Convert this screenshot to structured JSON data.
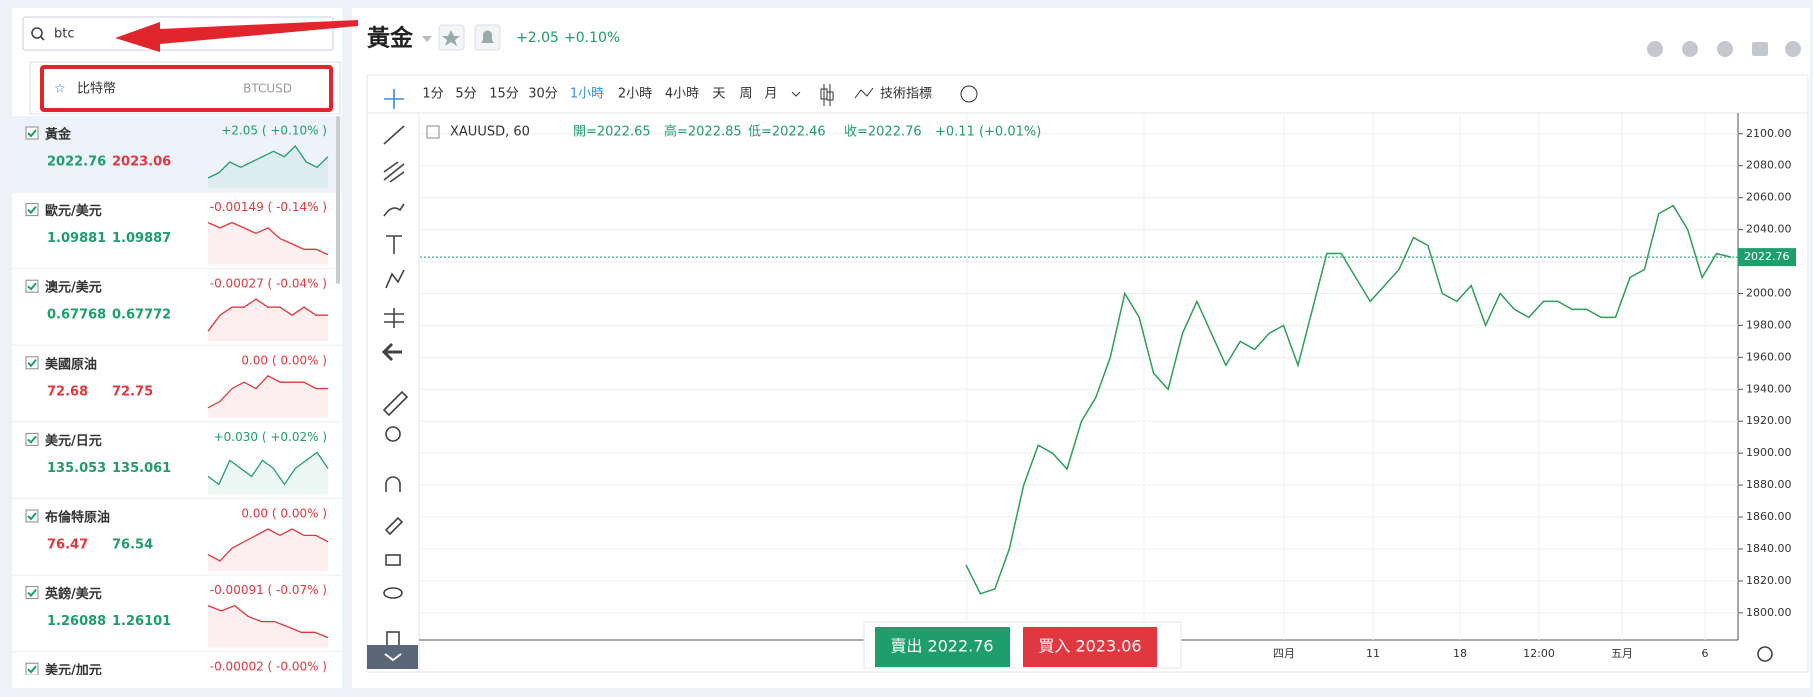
{
  "search": {
    "query": "btc",
    "result_name": "比特幣",
    "result_symbol": "BTCUSD"
  },
  "watchlist": [
    {
      "name": "黃金",
      "bid": "2022.76",
      "ask": "2023.06",
      "change": "+2.05 ( +0.10% )",
      "change_color": "#1e9e6a",
      "bid_color": "#1e9e6a",
      "ask_color": "#e0383e",
      "spark": [
        3,
        4,
        6,
        5,
        6,
        7,
        8,
        7,
        9,
        6,
        5,
        7
      ]
    },
    {
      "name": "歐元/美元",
      "bid": "1.09881",
      "ask": "1.09887",
      "change": "-0.00149 ( -0.14% )",
      "change_color": "#e0383e",
      "bid_color": "#1e9e6a",
      "ask_color": "#1e9e6a",
      "spark": [
        8,
        7,
        8,
        7,
        6,
        7,
        5,
        4,
        3,
        3,
        2
      ]
    },
    {
      "name": "澳元/美元",
      "bid": "0.67768",
      "ask": "0.67772",
      "change": "-0.00027 ( -0.04% )",
      "change_color": "#e0383e",
      "bid_color": "#1e9e6a",
      "ask_color": "#1e9e6a",
      "spark": [
        3,
        5,
        6,
        6,
        7,
        6,
        6,
        5,
        6,
        5,
        5
      ]
    },
    {
      "name": "美國原油",
      "bid": "72.68",
      "ask": "72.75",
      "change": "0.00 ( 0.00% )",
      "change_color": "#e0383e",
      "bid_color": "#e0383e",
      "ask_color": "#e0383e",
      "spark": [
        2,
        3,
        5,
        6,
        5,
        7,
        6,
        6,
        6,
        5,
        5
      ]
    },
    {
      "name": "美元/日元",
      "bid": "135.053",
      "ask": "135.061",
      "change": "+0.030 ( +0.02% )",
      "change_color": "#1e9e6a",
      "bid_color": "#1e9e6a",
      "ask_color": "#1e9e6a",
      "spark": [
        4,
        3,
        6,
        5,
        4,
        6,
        5,
        3,
        5,
        6,
        7,
        5
      ]
    },
    {
      "name": "布倫特原油",
      "bid": "76.47",
      "ask": "76.54",
      "change": "0.00 ( 0.00% )",
      "change_color": "#e0383e",
      "bid_color": "#e0383e",
      "ask_color": "#1e9e6a",
      "spark": [
        3,
        2,
        4,
        5,
        6,
        7,
        6,
        7,
        6,
        6,
        5
      ]
    },
    {
      "name": "英鎊/美元",
      "bid": "1.26088",
      "ask": "1.26101",
      "change": "-0.00091 ( -0.07% )",
      "change_color": "#e0383e",
      "bid_color": "#1e9e6a",
      "ask_color": "#1e9e6a",
      "spark": [
        8,
        7,
        8,
        6,
        5,
        5,
        4,
        3,
        3,
        2
      ]
    },
    {
      "name": "美元/加元",
      "change": "-0.00002 ( -0.00% )",
      "change_color": "#e0383e"
    }
  ],
  "header": {
    "symbol": "黃金",
    "change": "+2.05",
    "change_pct": "+0.10%"
  },
  "toolbar": {
    "intervals": [
      "1分",
      "5分",
      "15分",
      "30分",
      "1小時",
      "2小時",
      "4小時",
      "天",
      "周",
      "月"
    ],
    "active": 4,
    "indicators": "技術指標"
  },
  "legend": {
    "symbol": "XAUUSD, 60",
    "ohlc": [
      "開=2022.65",
      "高=2022.85",
      "低=2022.46",
      "收=2022.76"
    ],
    "change": "+0.11 (+0.01%)"
  },
  "chart_data": {
    "type": "line",
    "color": "#2e9e5a",
    "ylim": [
      1783,
      2113
    ],
    "yticks": [
      {
        "value": 1800,
        "label": "1800.00"
      },
      {
        "value": 1820,
        "label": "1820.00"
      },
      {
        "value": 1840,
        "label": "1840.00"
      },
      {
        "value": 1860,
        "label": "1860.00"
      },
      {
        "value": 1880,
        "label": "1880.00"
      },
      {
        "value": 1900,
        "label": "1900.00"
      },
      {
        "value": 1920,
        "label": "1920.00"
      },
      {
        "value": 1940,
        "label": "1940.00"
      },
      {
        "value": 1960,
        "label": "1960.00"
      },
      {
        "value": 1980,
        "label": "1980.00"
      },
      {
        "value": 2000,
        "label": "2000.00"
      },
      {
        "value": 2020,
        "label": "2020.00"
      },
      {
        "value": 2040,
        "label": "2040.00"
      },
      {
        "value": 2060,
        "label": "2060.00"
      },
      {
        "value": 2080,
        "label": "2080.00"
      },
      {
        "value": 2100,
        "label": "2100.00"
      }
    ],
    "x_labels": [
      "四月",
      "11",
      "18",
      "12:00",
      "五月",
      "6"
    ],
    "values": [
      1830,
      1812,
      1815,
      1840,
      1880,
      1905,
      1900,
      1890,
      1920,
      1935,
      1960,
      2000,
      1985,
      1950,
      1940,
      1975,
      1995,
      1975,
      1955,
      1970,
      1965,
      1975,
      1980,
      1955,
      1990,
      2025,
      2025,
      2010,
      1995,
      2005,
      2015,
      2035,
      2030,
      2000,
      1995,
      2005,
      1980,
      2000,
      1990,
      1985,
      1995,
      1995,
      1990,
      1990,
      1985,
      1985,
      2010,
      2015,
      2050,
      2055,
      2040,
      2010,
      2025,
      2022.76
    ],
    "last_price": {
      "value": 2022.76,
      "label": "2022.76"
    }
  },
  "buttons": {
    "sell": "賣出 2022.76",
    "buy": "買入 2023.06"
  }
}
